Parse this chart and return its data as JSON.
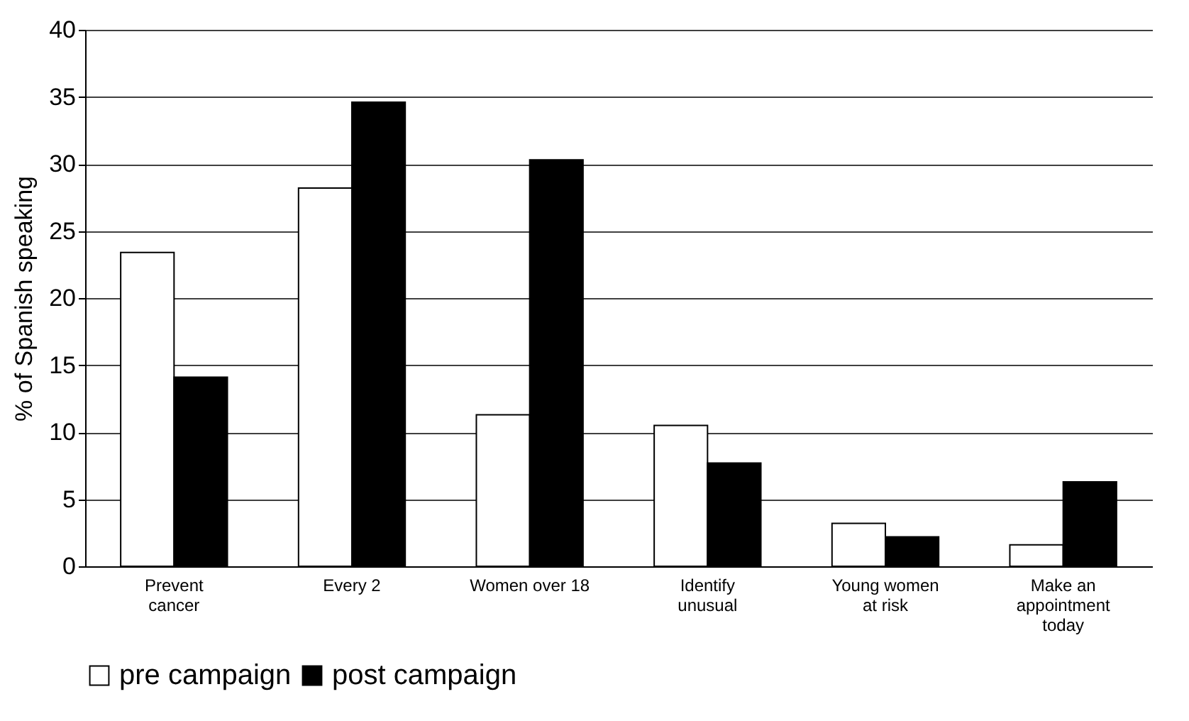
{
  "chart_data": {
    "type": "bar",
    "ylabel": "% of Spanish speaking",
    "categories": [
      "Prevent\ncancer",
      "Every 2",
      "Women over 18",
      "Identify\nunusual",
      "Young women\nat risk",
      "Make an\nappointment\ntoday"
    ],
    "series": [
      {
        "name": "pre campaign",
        "color": "#ffffff",
        "values": [
          23.4,
          28.2,
          11.3,
          10.5,
          3.2,
          1.6
        ]
      },
      {
        "name": "post campaign",
        "color": "#000000",
        "values": [
          14.1,
          34.6,
          30.3,
          7.7,
          2.2,
          6.3
        ]
      }
    ],
    "ylim": [
      0,
      40
    ],
    "yticks": [
      0,
      5,
      10,
      15,
      20,
      25,
      30,
      35,
      40
    ],
    "grid": "y",
    "legend": "bottom"
  }
}
